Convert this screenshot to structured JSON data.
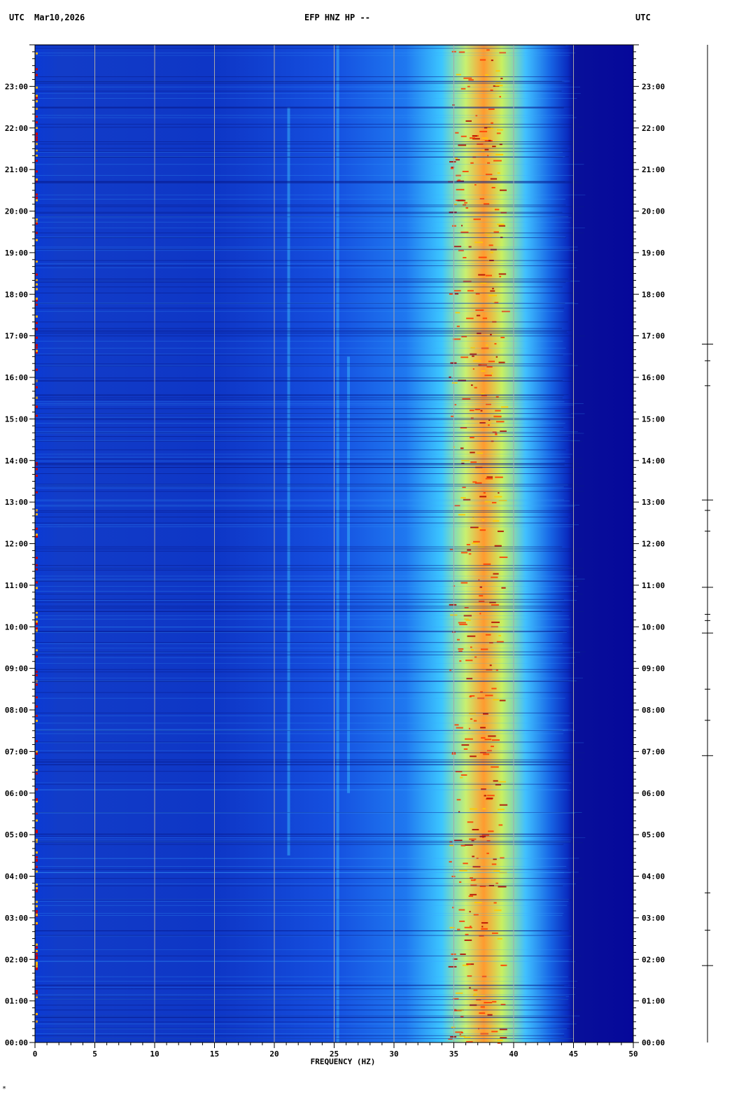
{
  "header": {
    "left_tz": "UTC",
    "date": "Mar10,2026",
    "station": "EFP HNZ HP --",
    "right_tz": "UTC"
  },
  "chart_data": {
    "type": "heatmap",
    "title": "EFP HNZ HP --",
    "date": "Mar10,2026",
    "xlabel": "FREQUENCY (HZ)",
    "ylabel_left": "UTC",
    "ylabel_right": "UTC",
    "xlim": [
      0,
      50
    ],
    "x_ticks": [
      "0",
      "5",
      "10",
      "15",
      "20",
      "25",
      "30",
      "35",
      "40",
      "45",
      "50"
    ],
    "y_range_hours": [
      0,
      24
    ],
    "y_ticks": [
      "00:00",
      "01:00",
      "02:00",
      "03:00",
      "04:00",
      "05:00",
      "06:00",
      "07:00",
      "08:00",
      "09:00",
      "10:00",
      "11:00",
      "12:00",
      "13:00",
      "14:00",
      "15:00",
      "16:00",
      "17:00",
      "18:00",
      "19:00",
      "20:00",
      "21:00",
      "22:00",
      "23:00"
    ],
    "colormap": [
      "#00007f",
      "#0000ff",
      "#0080ff",
      "#00ffff",
      "#ffff00",
      "#ff8000",
      "#ff0000",
      "#800000"
    ],
    "dominant_band_hz": [
      33,
      40
    ],
    "noise_cutoff_hz": 45,
    "trace_event_hours": [
      1.85,
      2.7,
      3.6,
      6.9,
      7.75,
      8.5,
      9.85,
      10.15,
      10.3,
      10.95,
      12.3,
      12.8,
      13.05,
      15.8,
      16.4,
      16.8
    ]
  },
  "footnote": "*",
  "colors": {
    "background": "#ffffff",
    "plot_bg": "#1a3cd8",
    "grid": "#a8a8a8",
    "axis": "#000000"
  }
}
